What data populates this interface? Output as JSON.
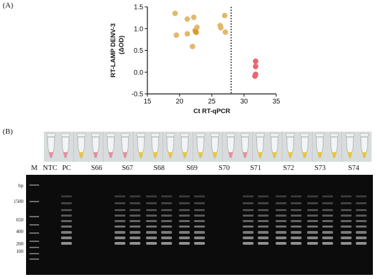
{
  "panel_a_label": "(A)",
  "panel_b_label": "(B)",
  "colors": {
    "positive": "#e3b86a",
    "negative": "#ea6670",
    "highlight": "#d89a2a"
  },
  "chart_data": {
    "type": "scatter",
    "xlabel": "Ct RT-qPCR",
    "ylabel": "RT-LAMP DENV-3",
    "ylabel_unit": "(ΔOD)",
    "xlim": [
      15,
      35
    ],
    "ylim": [
      -0.5,
      1.5
    ],
    "x_ticks": [
      "15",
      "20",
      "25",
      "30",
      "35"
    ],
    "y_ticks": [
      "-0.5",
      "0.0",
      "0.5",
      "1.0",
      "1.5"
    ],
    "cutoff_x": 28,
    "grid": false,
    "series": [
      {
        "color": "#e3b86a",
        "points": [
          [
            19.3,
            1.35
          ],
          [
            21.2,
            1.22
          ],
          [
            22.2,
            1.26
          ],
          [
            19.5,
            0.85
          ],
          [
            21.2,
            0.88
          ],
          [
            22.4,
            0.96
          ],
          [
            22.6,
            0.91
          ],
          [
            22.7,
            1.03
          ],
          [
            22.0,
            0.59
          ],
          [
            26.3,
            1.07
          ],
          [
            26.4,
            1.02
          ],
          [
            27.0,
            1.3
          ],
          [
            27.1,
            0.92
          ]
        ]
      },
      {
        "color": "#d89a2a",
        "points": [
          [
            22.5,
            0.93
          ]
        ]
      },
      {
        "color": "#ea6670",
        "points": [
          [
            31.8,
            0.25
          ],
          [
            31.8,
            0.13
          ],
          [
            31.8,
            -0.05
          ],
          [
            31.7,
            -0.09
          ]
        ]
      }
    ]
  },
  "gel": {
    "lanes": [
      {
        "label": "M"
      },
      {
        "label": "NTC"
      },
      {
        "label": "PC"
      },
      {
        "label": "S66"
      },
      {
        "label": "S67"
      },
      {
        "label": "S68"
      },
      {
        "label": "S69"
      },
      {
        "label": "S70"
      },
      {
        "label": "S71"
      },
      {
        "label": "S72"
      },
      {
        "label": "S73"
      },
      {
        "label": "S74"
      }
    ],
    "bp_header": "bp",
    "bp_markers": [
      "1500",
      "650",
      "400",
      "200",
      "100"
    ],
    "tube_groups": [
      {
        "colors": [
          "pink",
          "pink"
        ]
      },
      {
        "colors": [
          "yellow",
          "pink"
        ]
      },
      {
        "colors": [
          "pink",
          "pink"
        ]
      },
      {
        "colors": [
          "yellow",
          "yellow"
        ]
      },
      {
        "colors": [
          "yellow",
          "yellow"
        ]
      },
      {
        "colors": [
          "yellow",
          "yellow"
        ]
      },
      {
        "colors": [
          "pink",
          "pink"
        ]
      },
      {
        "colors": [
          "yellow",
          "yellow"
        ]
      },
      {
        "colors": [
          "yellow",
          "yellow"
        ]
      },
      {
        "colors": [
          "yellow",
          "yellow"
        ]
      },
      {
        "colors": [
          "yellow",
          "yellow"
        ]
      }
    ]
  }
}
